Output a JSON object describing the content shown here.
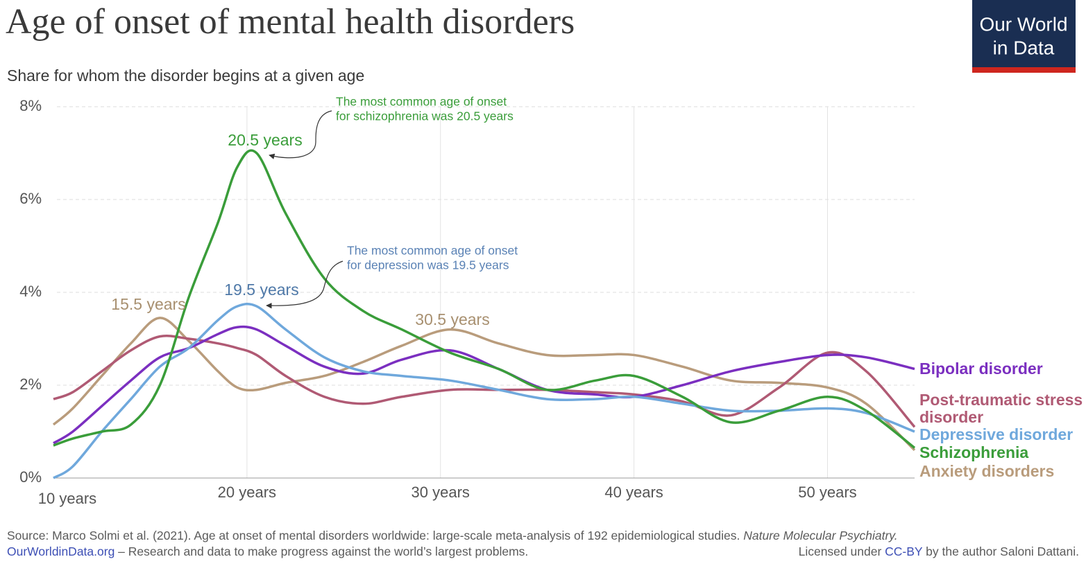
{
  "chart_data": {
    "type": "line",
    "title": "Age of onset of mental health disorders",
    "subtitle": "Share for whom the disorder begins at a given age",
    "logo": [
      "Our World",
      "in Data"
    ],
    "x": [
      10,
      11,
      12.5,
      14,
      15.5,
      17,
      18.5,
      19.5,
      20.5,
      22,
      24,
      26,
      28,
      30.5,
      33,
      35.5,
      38,
      40,
      42.5,
      45,
      47.5,
      50,
      52,
      54.5
    ],
    "xlim": [
      10,
      54.5
    ],
    "xticks": [
      {
        "value": 10,
        "label": "10 years"
      },
      {
        "value": 20,
        "label": "20 years"
      },
      {
        "value": 30,
        "label": "30 years"
      },
      {
        "value": 40,
        "label": "40 years"
      },
      {
        "value": 50,
        "label": "50 years"
      }
    ],
    "ylim": [
      0,
      8
    ],
    "yticks": [
      {
        "value": 0,
        "label": "0%"
      },
      {
        "value": 2,
        "label": "2%"
      },
      {
        "value": 4,
        "label": "4%"
      },
      {
        "value": 6,
        "label": "6%"
      },
      {
        "value": 8,
        "label": "8%"
      }
    ],
    "grid": true,
    "series": [
      {
        "name": "Bipolar disorder",
        "color": "#7b2fc0",
        "values": [
          0.75,
          1.0,
          1.55,
          2.1,
          2.6,
          2.8,
          3.1,
          3.25,
          3.2,
          2.85,
          2.4,
          2.25,
          2.55,
          2.75,
          2.35,
          1.9,
          1.8,
          1.75,
          2.0,
          2.3,
          2.5,
          2.65,
          2.6,
          2.35
        ]
      },
      {
        "name": "Post-traumatic stress disorder",
        "color": "#b05a74",
        "values": [
          1.7,
          1.85,
          2.3,
          2.75,
          3.05,
          3.0,
          2.9,
          2.8,
          2.65,
          2.2,
          1.75,
          1.6,
          1.75,
          1.9,
          1.9,
          1.9,
          1.85,
          1.8,
          1.65,
          1.35,
          1.95,
          2.7,
          2.3,
          1.1
        ]
      },
      {
        "name": "Depressive disorder",
        "color": "#6fa8dc",
        "values": [
          0.0,
          0.25,
          1.0,
          1.7,
          2.4,
          2.8,
          3.4,
          3.7,
          3.7,
          3.2,
          2.6,
          2.3,
          2.2,
          2.1,
          1.9,
          1.7,
          1.7,
          1.75,
          1.6,
          1.45,
          1.45,
          1.5,
          1.4,
          1.0
        ]
      },
      {
        "name": "Schizophrenia",
        "color": "#3a9d3a",
        "values": [
          0.7,
          0.85,
          1.0,
          1.15,
          2.0,
          3.9,
          5.5,
          6.7,
          7.0,
          5.7,
          4.3,
          3.6,
          3.2,
          2.7,
          2.35,
          1.9,
          2.1,
          2.2,
          1.75,
          1.2,
          1.45,
          1.75,
          1.45,
          0.65
        ]
      },
      {
        "name": "Anxiety disorders",
        "color": "#b99c7c",
        "values": [
          1.15,
          1.5,
          2.2,
          2.9,
          3.45,
          2.95,
          2.3,
          1.95,
          1.9,
          2.05,
          2.2,
          2.5,
          2.85,
          3.2,
          2.9,
          2.65,
          2.65,
          2.65,
          2.4,
          2.1,
          2.05,
          1.95,
          1.6,
          0.6
        ]
      }
    ],
    "annotations": [
      {
        "text": "20.5 years",
        "color": "#3a9d3a"
      },
      {
        "text": "19.5 years",
        "color": "#4f79a8"
      },
      {
        "text": "15.5 years",
        "color": "#a89070"
      },
      {
        "text": "30.5 years",
        "color": "#a89070"
      }
    ],
    "notes": [
      {
        "lines": [
          "The most common age of onset",
          "for schizophrenia was 20.5 years"
        ],
        "color": "#3a9d3a"
      },
      {
        "lines": [
          "The most common age of onset",
          "for depression was 19.5 years"
        ],
        "color": "#5a82b5"
      }
    ],
    "source": "Source: Marco Solmi et al. (2021). Age at onset of mental disorders worldwide: large-scale meta-analysis of 192 epidemiological studies.",
    "source_journal": "Nature Molecular Psychiatry.",
    "site": "OurWorldinData.org",
    "tagline": "– Research and data to make progress against the world’s largest problems.",
    "license": [
      "Licensed under",
      "CC-BY",
      "by the author Saloni Dattani."
    ]
  }
}
